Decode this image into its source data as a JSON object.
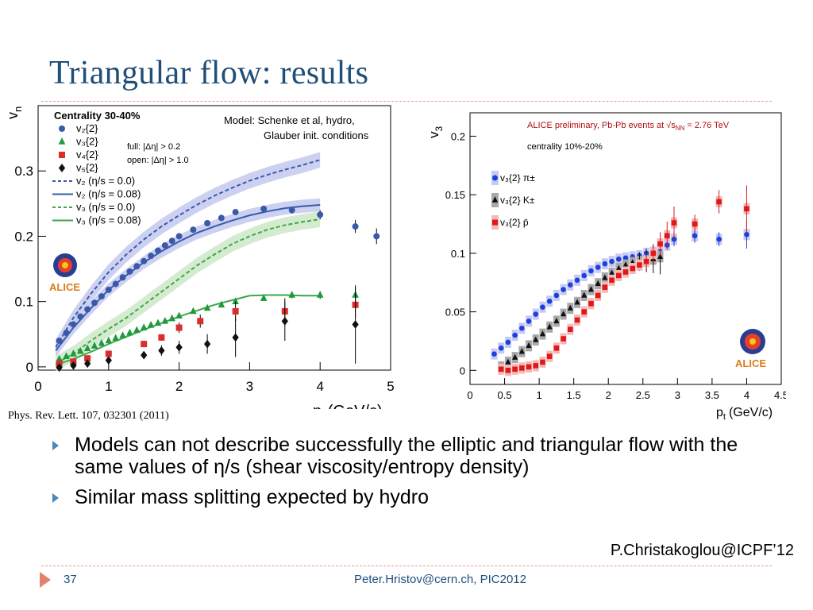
{
  "slide": {
    "title": "Triangular flow: results",
    "reference": "Phys. Rev. Lett. 107, 032301 (2011)",
    "bullets": [
      "Models can not describe successfully the elliptic and triangular flow with the same values of η/s (shear viscosity/entropy density)",
      " Similar mass splitting expected by hydro"
    ],
    "signature": "P.Christakoglou@ICPF’12",
    "page_number": "37",
    "footer": "Peter.Hristov@cern.ch, PIC2012",
    "accent_color": "#1f4e79",
    "arrow_color": "#4d86b8",
    "rule_color": "#e29b8f"
  },
  "chart_data": [
    {
      "type": "scatter",
      "title": "Centrality 30-40%",
      "model_note": [
        "Model: Schenke et al, hydro,",
        "Glauber init. conditions"
      ],
      "cut_note": [
        "full: |Δη| > 0.2",
        "open: |Δη| > 1.0"
      ],
      "logo": "ALICE",
      "ylabel": "v",
      "ylabel_sub": "n",
      "xlabel": "p",
      "xlabel_sub": "t",
      "xlabel_unit": "(GeV/c)",
      "xlim": [
        0,
        5
      ],
      "ylim": [
        -0.005,
        0.4
      ],
      "xticks": [
        "0",
        "1",
        "2",
        "3",
        "4",
        "5"
      ],
      "yticks": [
        "0",
        "0.1",
        "0.2",
        "0.3"
      ],
      "yticks_values": [
        0,
        0.1,
        0.2,
        0.3
      ],
      "legend": [
        {
          "label": "v₂{2}",
          "marker": "circle",
          "color": "#3a59a8"
        },
        {
          "label": "v₃{2}",
          "marker": "triangle",
          "color": "#1f9a3c"
        },
        {
          "label": "v₄{2}",
          "marker": "square",
          "color": "#d92e2e"
        },
        {
          "label": "v₅{2}",
          "marker": "diamond",
          "color": "#111111"
        },
        {
          "label": "v₂ (η/s = 0.0)",
          "line": "dashed",
          "color": "#3a59a8"
        },
        {
          "label": "v₂ (η/s = 0.08)",
          "line": "solid",
          "color": "#3a59a8"
        },
        {
          "label": "v₃ (η/s = 0.0)",
          "line": "dashed",
          "color": "#3aa84a"
        },
        {
          "label": "v₃ (η/s = 0.08)",
          "line": "solid",
          "color": "#3aa84a"
        }
      ],
      "series": [
        {
          "name": "v₂{2}",
          "marker": "circle",
          "color": "#3a59a8",
          "x": [
            0.3,
            0.4,
            0.5,
            0.6,
            0.7,
            0.8,
            0.9,
            1.0,
            1.1,
            1.2,
            1.3,
            1.4,
            1.5,
            1.6,
            1.7,
            1.8,
            1.9,
            2.0,
            2.2,
            2.4,
            2.6,
            2.8,
            3.2,
            3.6,
            4.0,
            4.5,
            4.8
          ],
          "y": [
            0.04,
            0.052,
            0.065,
            0.077,
            0.088,
            0.098,
            0.108,
            0.118,
            0.127,
            0.137,
            0.146,
            0.154,
            0.162,
            0.17,
            0.178,
            0.186,
            0.193,
            0.2,
            0.21,
            0.22,
            0.228,
            0.237,
            0.242,
            0.24,
            0.233,
            0.215,
            0.2
          ],
          "err": [
            0,
            0,
            0,
            0,
            0,
            0,
            0,
            0,
            0,
            0,
            0,
            0,
            0,
            0,
            0,
            0,
            0,
            0,
            0,
            0,
            0,
            0,
            0.005,
            0.005,
            0.007,
            0.01,
            0.012
          ]
        },
        {
          "name": "v₃{2}",
          "marker": "triangle",
          "color": "#1f9a3c",
          "x": [
            0.3,
            0.4,
            0.5,
            0.6,
            0.7,
            0.8,
            0.9,
            1.0,
            1.1,
            1.2,
            1.3,
            1.4,
            1.5,
            1.6,
            1.7,
            1.8,
            1.9,
            2.0,
            2.2,
            2.4,
            2.6,
            2.8,
            3.2,
            3.6,
            4.0,
            4.5
          ],
          "y": [
            0.012,
            0.016,
            0.02,
            0.024,
            0.028,
            0.032,
            0.036,
            0.04,
            0.044,
            0.048,
            0.052,
            0.056,
            0.06,
            0.064,
            0.067,
            0.07,
            0.074,
            0.078,
            0.085,
            0.09,
            0.095,
            0.1,
            0.105,
            0.11,
            0.11,
            0.11
          ],
          "err": [
            0,
            0,
            0,
            0,
            0,
            0,
            0,
            0,
            0,
            0,
            0,
            0,
            0,
            0,
            0,
            0,
            0,
            0,
            0,
            0,
            0,
            0,
            0.004,
            0.005,
            0.006,
            0.012
          ]
        },
        {
          "name": "v₄{2}",
          "marker": "square",
          "color": "#d92e2e",
          "x": [
            0.3,
            0.5,
            0.7,
            1.0,
            1.5,
            1.75,
            2.0,
            2.3,
            2.8,
            3.5,
            4.5
          ],
          "y": [
            0.005,
            0.008,
            0.013,
            0.02,
            0.035,
            0.045,
            0.06,
            0.07,
            0.085,
            0.085,
            0.095
          ],
          "err": [
            0.002,
            0.002,
            0.002,
            0.003,
            0.004,
            0.005,
            0.008,
            0.01,
            0.015,
            0.02,
            0.02
          ]
        },
        {
          "name": "v₅{2}",
          "marker": "diamond",
          "color": "#111111",
          "x": [
            0.3,
            0.5,
            0.7,
            1.0,
            1.5,
            1.75,
            2.0,
            2.4,
            2.8,
            3.5,
            4.5
          ],
          "y": [
            -0.001,
            0.002,
            0.005,
            0.01,
            0.018,
            0.025,
            0.03,
            0.035,
            0.045,
            0.07,
            0.065
          ],
          "err": [
            0.003,
            0.003,
            0.004,
            0.005,
            0.006,
            0.008,
            0.01,
            0.015,
            0.03,
            0.03,
            0.06
          ]
        },
        {
          "name": "v₂ (η/s = 0.0)",
          "line": "dashed",
          "color": "#3a59a8",
          "x": [
            0.25,
            0.5,
            0.75,
            1.0,
            1.25,
            1.5,
            1.75,
            2.0,
            2.25,
            2.5,
            2.75,
            3.0,
            3.25,
            3.5,
            3.75,
            4.0
          ],
          "y": [
            0.03,
            0.075,
            0.112,
            0.145,
            0.172,
            0.195,
            0.215,
            0.232,
            0.248,
            0.262,
            0.274,
            0.285,
            0.294,
            0.302,
            0.309,
            0.317
          ]
        },
        {
          "name": "v₂ (η/s = 0.08)",
          "line": "solid",
          "color": "#3a59a8",
          "x": [
            0.25,
            0.5,
            0.75,
            1.0,
            1.25,
            1.5,
            1.75,
            2.0,
            2.25,
            2.5,
            2.75,
            3.0,
            3.25,
            3.5,
            3.75,
            4.0
          ],
          "y": [
            0.025,
            0.06,
            0.09,
            0.118,
            0.14,
            0.16,
            0.177,
            0.192,
            0.205,
            0.215,
            0.224,
            0.232,
            0.238,
            0.243,
            0.246,
            0.248
          ]
        },
        {
          "name": "v₃ (η/s = 0.0)",
          "line": "dashed",
          "color": "#3aa84a",
          "x": [
            0.25,
            0.5,
            0.75,
            1.0,
            1.25,
            1.5,
            1.75,
            2.0,
            2.25,
            2.5,
            2.75,
            3.0,
            3.25,
            3.5,
            3.75,
            4.0
          ],
          "y": [
            0.005,
            0.02,
            0.04,
            0.058,
            0.075,
            0.095,
            0.115,
            0.135,
            0.155,
            0.172,
            0.188,
            0.2,
            0.21,
            0.217,
            0.222,
            0.226
          ]
        },
        {
          "name": "v₃ (η/s = 0.08)",
          "line": "solid",
          "color": "#3aa84a",
          "x": [
            0.25,
            0.5,
            0.75,
            1.0,
            1.25,
            1.5,
            1.75,
            2.0,
            2.25,
            2.5,
            2.75,
            3.0,
            3.25,
            3.5,
            3.75,
            4.0
          ],
          "y": [
            0.003,
            0.012,
            0.023,
            0.035,
            0.046,
            0.057,
            0.067,
            0.077,
            0.086,
            0.095,
            0.102,
            0.109,
            0.11,
            0.11,
            0.109,
            0.109
          ]
        }
      ],
      "bands": [
        {
          "series": "v₂ (η/s = 0.0)",
          "halfwidth": 0.012,
          "color": "#c4c9ee"
        },
        {
          "series": "v₂ (η/s = 0.08)",
          "halfwidth": 0.01,
          "color": "#c4c9ee"
        },
        {
          "series": "v₃ (η/s = 0.0)",
          "halfwidth": 0.012,
          "color": "#cde8c7"
        }
      ]
    },
    {
      "type": "scatter",
      "header": "ALICE preliminary, Pb-Pb events at √s",
      "header_sub": "NN",
      "header_tail": " = 2.76 TeV",
      "subheader": "centrality 10%-20%",
      "logo": "ALICE",
      "ylabel": "v",
      "ylabel_sub": "3",
      "xlabel": "p",
      "xlabel_sub": "t",
      "xlabel_unit": "(GeV/c)",
      "xlim": [
        0,
        4.5
      ],
      "ylim": [
        -0.012,
        0.22
      ],
      "xticks": [
        "0",
        "0.5",
        "1",
        "1.5",
        "2",
        "2.5",
        "3",
        "3.5",
        "4",
        "4.5"
      ],
      "yticks": [
        "0",
        "0.05",
        "0.1",
        "0.15",
        "0.2"
      ],
      "yticks_values": [
        0,
        0.05,
        0.1,
        0.15,
        0.2
      ],
      "series": [
        {
          "name": "v₃{2} π±",
          "marker": "circle",
          "color": "#1f3fdc",
          "box_color": "#c5caf3",
          "x": [
            0.35,
            0.45,
            0.55,
            0.65,
            0.75,
            0.85,
            0.95,
            1.05,
            1.15,
            1.25,
            1.35,
            1.45,
            1.55,
            1.65,
            1.75,
            1.85,
            1.95,
            2.05,
            2.15,
            2.25,
            2.35,
            2.45,
            2.55,
            2.65,
            2.75,
            2.85,
            2.95,
            3.25,
            3.6,
            4.0
          ],
          "y": [
            0.014,
            0.019,
            0.024,
            0.03,
            0.036,
            0.042,
            0.048,
            0.054,
            0.059,
            0.064,
            0.069,
            0.073,
            0.077,
            0.081,
            0.085,
            0.088,
            0.091,
            0.093,
            0.095,
            0.096,
            0.097,
            0.098,
            0.1,
            0.101,
            0.104,
            0.107,
            0.112,
            0.115,
            0.112,
            0.116
          ],
          "err": [
            0,
            0,
            0,
            0,
            0,
            0,
            0,
            0,
            0,
            0,
            0,
            0,
            0,
            0,
            0,
            0,
            0,
            0,
            0,
            0,
            0,
            0,
            0,
            0,
            0,
            0,
            0.006,
            0.006,
            0.006,
            0.012
          ]
        },
        {
          "name": "v₃{2} K±",
          "marker": "triangle",
          "color": "#111111",
          "box_color": "#a9a9a9",
          "x": [
            0.45,
            0.55,
            0.65,
            0.75,
            0.85,
            0.95,
            1.05,
            1.15,
            1.25,
            1.35,
            1.45,
            1.55,
            1.65,
            1.75,
            1.85,
            1.95,
            2.05,
            2.15,
            2.25,
            2.35,
            2.45,
            2.55,
            2.65,
            2.75
          ],
          "y": [
            0.003,
            0.007,
            0.011,
            0.016,
            0.021,
            0.026,
            0.031,
            0.037,
            0.042,
            0.048,
            0.053,
            0.058,
            0.064,
            0.069,
            0.074,
            0.079,
            0.083,
            0.087,
            0.09,
            0.092,
            0.093,
            0.094,
            0.095,
            0.097
          ],
          "err": [
            0,
            0,
            0,
            0,
            0,
            0,
            0,
            0,
            0,
            0,
            0,
            0,
            0,
            0,
            0,
            0,
            0,
            0,
            0,
            0,
            0.008,
            0.01,
            0.012,
            0.015
          ]
        },
        {
          "name": "v₃{2} p̄",
          "marker": "square",
          "color": "#e01818",
          "box_color": "#f3b8b8",
          "x": [
            0.45,
            0.55,
            0.65,
            0.75,
            0.85,
            0.95,
            1.05,
            1.15,
            1.25,
            1.35,
            1.45,
            1.55,
            1.65,
            1.75,
            1.85,
            1.95,
            2.05,
            2.15,
            2.25,
            2.35,
            2.45,
            2.55,
            2.65,
            2.75,
            2.85,
            2.95,
            3.25,
            3.6,
            4.0
          ],
          "y": [
            0.001,
            0,
            0.001,
            0.002,
            0.003,
            0.004,
            0.007,
            0.012,
            0.019,
            0.027,
            0.035,
            0.043,
            0.05,
            0.057,
            0.064,
            0.071,
            0.077,
            0.081,
            0.084,
            0.087,
            0.09,
            0.093,
            0.1,
            0.108,
            0.115,
            0.126,
            0.125,
            0.144,
            0.138
          ],
          "err": [
            0,
            0,
            0,
            0,
            0,
            0,
            0,
            0,
            0,
            0,
            0,
            0,
            0,
            0,
            0,
            0,
            0,
            0,
            0,
            0,
            0,
            0.006,
            0.008,
            0.01,
            0.012,
            0.014,
            0.008,
            0.01,
            0.02
          ]
        }
      ]
    }
  ]
}
